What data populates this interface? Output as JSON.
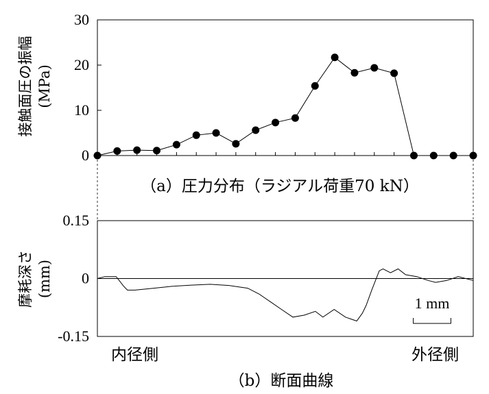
{
  "chart_data": [
    {
      "type": "line",
      "subplot": "a",
      "caption": "（a）圧力分布（ラジアル荷重70 kN）",
      "ylabel_line1": "接触面圧の振幅",
      "ylabel_line2": "(MPa)",
      "ylim": [
        0,
        30
      ],
      "yticks": [
        "0",
        "10",
        "20",
        "30"
      ],
      "grid": false,
      "series": [
        {
          "x": [
            1,
            2,
            3,
            4,
            5,
            6,
            7,
            8,
            9,
            10,
            11,
            12,
            13,
            14,
            15,
            16,
            17,
            18,
            19,
            20
          ],
          "values": [
            0,
            1.0,
            1.2,
            1.1,
            2.4,
            4.5,
            5.0,
            2.6,
            5.6,
            7.3,
            8.3,
            15.4,
            21.7,
            18.3,
            19.4,
            18.2,
            0,
            0,
            0,
            0
          ]
        }
      ]
    },
    {
      "type": "line",
      "subplot": "b",
      "caption": "（b）断面曲線",
      "ylabel_line1": "摩耗深さ",
      "ylabel_line2": "(mm)",
      "ylim": [
        -0.15,
        0.15
      ],
      "yticks": [
        "-0.15",
        "0",
        "0.15"
      ],
      "xlim": [
        0,
        10
      ],
      "x_left_label": "内径側",
      "x_right_label": "外径側",
      "scale_bar_label": "1 mm",
      "scale_bar_length_mm": 1,
      "grid": false,
      "series": [
        {
          "x": [
            0,
            0.2,
            0.5,
            0.7,
            0.8,
            1.0,
            1.5,
            2.0,
            2.5,
            3.0,
            3.5,
            4.0,
            4.3,
            4.6,
            4.9,
            5.2,
            5.5,
            5.8,
            6.0,
            6.3,
            6.6,
            6.9,
            7.05,
            7.15,
            7.3,
            7.5,
            7.6,
            7.8,
            8.0,
            8.2,
            8.5,
            8.8,
            9.0,
            9.3,
            9.6,
            10.0
          ],
          "values": [
            0.0,
            0.005,
            0.005,
            -0.02,
            -0.03,
            -0.03,
            -0.025,
            -0.02,
            -0.017,
            -0.015,
            -0.018,
            -0.025,
            -0.04,
            -0.06,
            -0.08,
            -0.1,
            -0.095,
            -0.085,
            -0.1,
            -0.08,
            -0.1,
            -0.11,
            -0.09,
            -0.07,
            -0.03,
            0.02,
            0.025,
            0.015,
            0.025,
            0.01,
            0.005,
            -0.005,
            -0.01,
            -0.005,
            0.005,
            -0.005
          ]
        }
      ]
    }
  ]
}
